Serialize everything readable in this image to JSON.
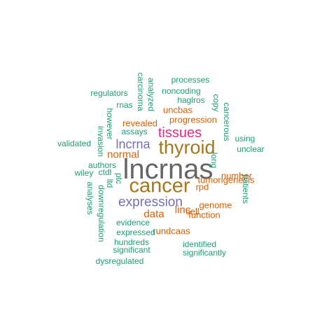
{
  "colors": {
    "teal": "#1b9e77",
    "orange": "#d95f02",
    "purple": "#7570b3",
    "magenta": "#e7298a",
    "brown": "#a6761d",
    "gray": "#666666"
  },
  "words": {
    "lncrnas": "lncrnas",
    "cancer": "cancer",
    "thyroid": "thyroid",
    "tissues": "tissues",
    "expression": "expression",
    "lncrna": "lncrna",
    "normal": "normal",
    "data": "data",
    "revealed": "revealed",
    "progression": "progression",
    "uncbas": "uncbas",
    "rpd": "rpd",
    "cell": "cell",
    "linc": "linc",
    "function": "function",
    "rundcaas": "rundcaas",
    "genome": "genome",
    "tumorigenesis": "tumorigenesis",
    "number": "number",
    "long": "long",
    "copy": "copy",
    "cancerous": "cancerous",
    "processes": "processes",
    "noncoding": "noncoding",
    "regulators": "regulators",
    "haglros": "haglros",
    "rnas": "rnas",
    "carcinoma": "carcinoma",
    "analyzed": "analyzed",
    "however": "however",
    "invasion": "invasion",
    "assays": "assays",
    "validated": "validated",
    "authors": "authors",
    "wiley": "wiley",
    "ctdl": "ctdl",
    "ltd": "ltd",
    "ptc": "ptc",
    "analyses": "analyses",
    "downregulation": "downregulation",
    "evidence": "evidence",
    "expressed": "expressed",
    "hundreds": "hundreds",
    "significant": "significant",
    "dysregulated": "dysregulated",
    "identified": "identified",
    "significantly": "significantly",
    "using": "using",
    "unclear": "unclear",
    "patients": "patients"
  }
}
